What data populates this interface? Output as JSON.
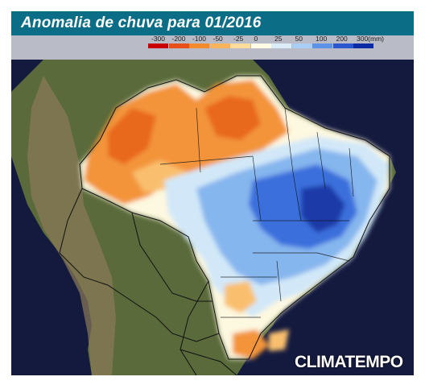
{
  "title": "Anomalia de chuva para 01/2016",
  "legend": {
    "labels": [
      "-300",
      "-200",
      "-100",
      "-50",
      "-25",
      "0",
      "25",
      "50",
      "100",
      "200",
      "300(mm)"
    ],
    "colors": [
      "#c80000",
      "#e8501a",
      "#f38a2c",
      "#f9b35a",
      "#fddc9c",
      "#fdfbe6",
      "#d9ecf8",
      "#a9cdf3",
      "#5c93e6",
      "#2a57d0",
      "#0c2aa5"
    ]
  },
  "map": {
    "palette": {
      "ocean": "#141a3e",
      "land": "#5a6a3a",
      "andes": "#8a7a58",
      "deficit_strong": "#e8681e",
      "deficit": "#f3943a",
      "deficit_light": "#f9bf6e",
      "neutral": "#fdf8e0",
      "excess_light": "#d2e8f8",
      "excess": "#86b6ee",
      "excess_strong": "#3b6fdc",
      "excess_max": "#1b3aa8",
      "borders": "#111111"
    }
  },
  "brand": "CLIMATEMPO"
}
